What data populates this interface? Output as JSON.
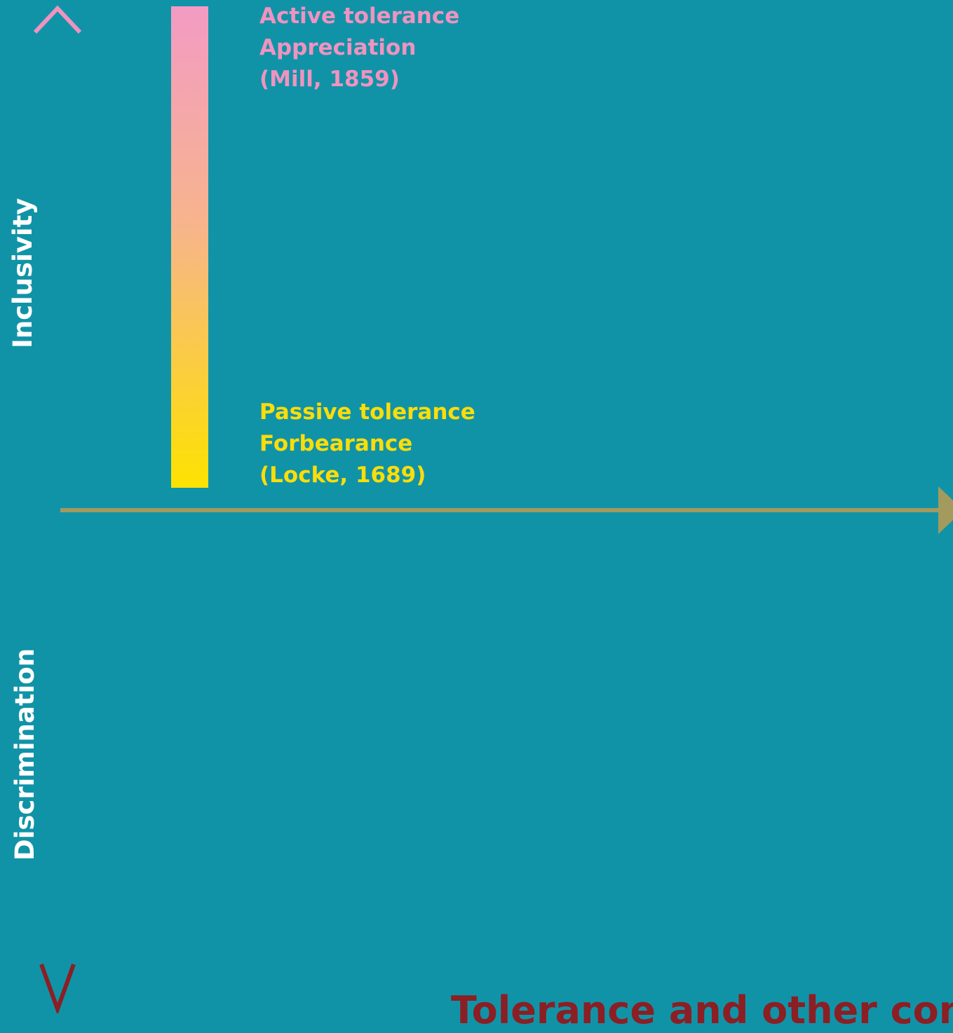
{
  "axes": {
    "vertical_top_label": "Inclusivity",
    "vertical_bottom_label": "Discrimination",
    "vertical_top_color": "#f093c0",
    "vertical_bottom_color": "#8b1f24",
    "horizontal_color": "#a39a5e"
  },
  "scale_bar": {
    "top_color": "#f39bc4",
    "bottom_color": "#fde200"
  },
  "active_tolerance": {
    "line1": "Active tolerance",
    "line2": "Appreciation",
    "line3": "(Mill, 1859)",
    "color": "#f093c0"
  },
  "passive_tolerance": {
    "line1": "Passive tolerance",
    "line2": "Forbearance",
    "line3": "(Locke, 1689)",
    "color": "#fbdd0a"
  },
  "footer": {
    "title": "Tolerance and other cons",
    "color": "#8b1f24"
  },
  "background_color": "#1193a7"
}
